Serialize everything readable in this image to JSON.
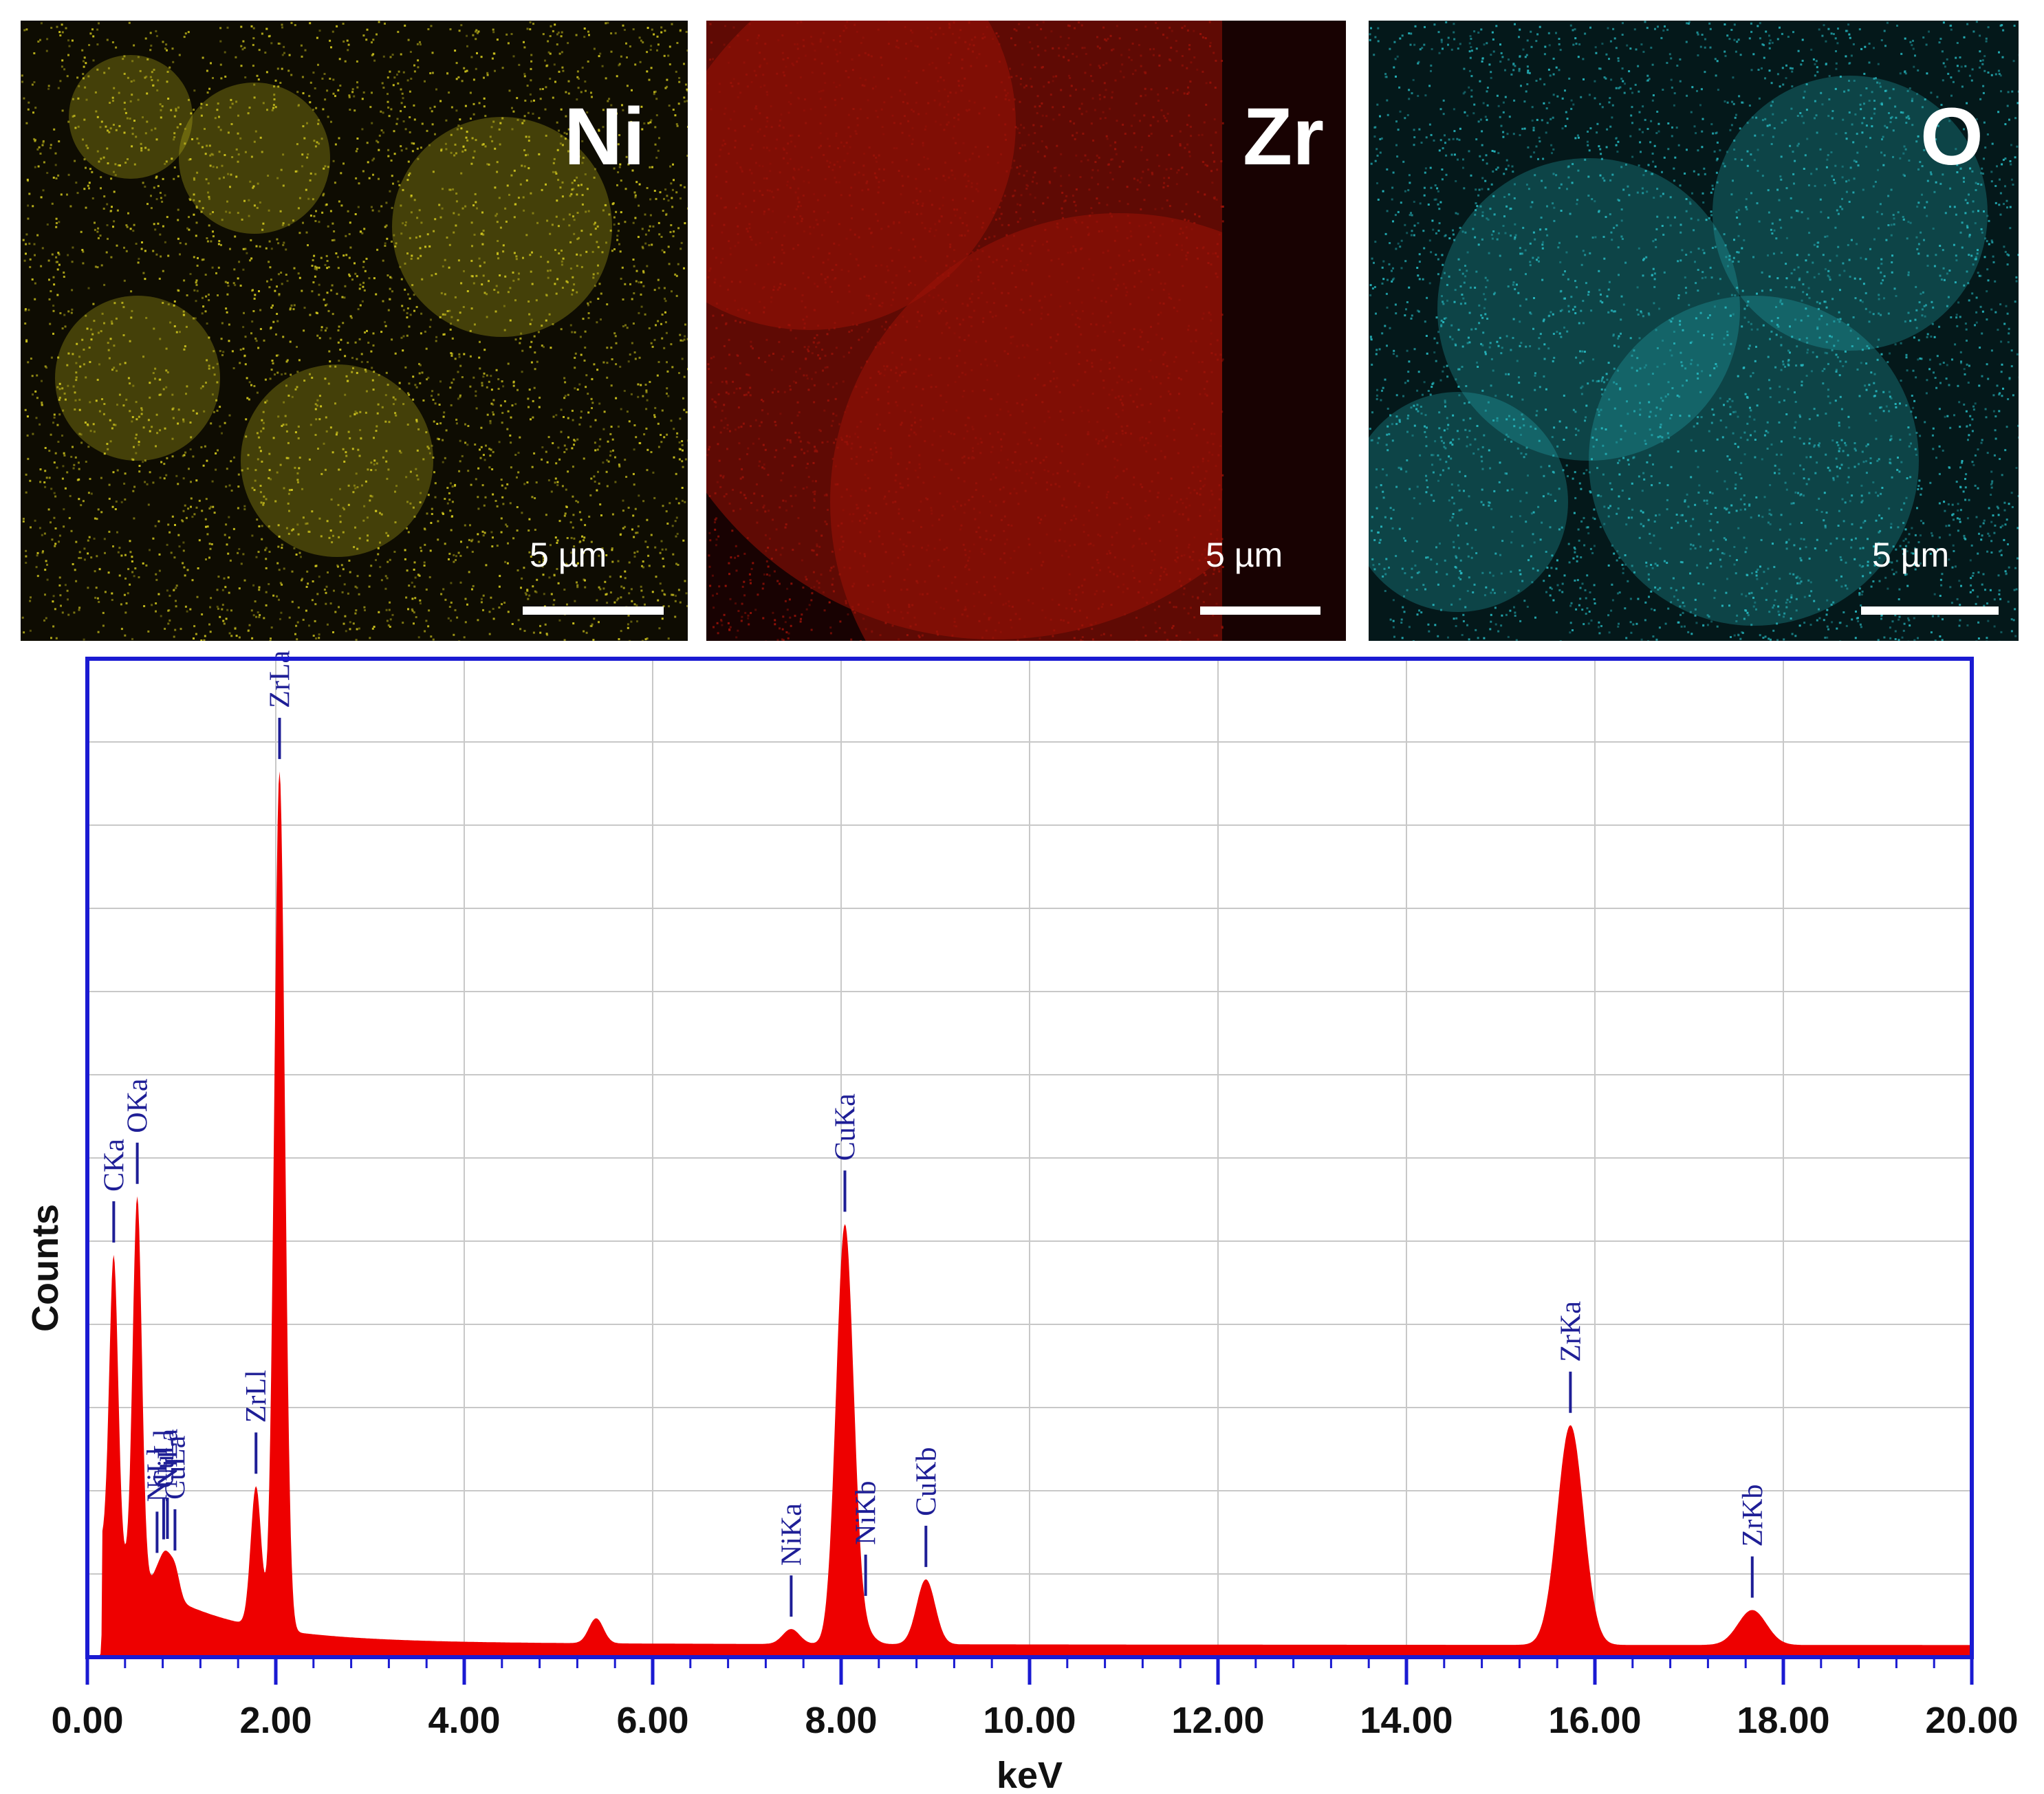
{
  "maps": [
    {
      "element": "Ni",
      "scale": "5 µm",
      "color": "#d2c81e",
      "background": "#0e0c02"
    },
    {
      "element": "Zr",
      "scale": "5 µm",
      "color": "#9a1208",
      "background": "#180202"
    },
    {
      "element": "O",
      "scale": "5 µm",
      "color": "#26b8c0",
      "background": "#04181a"
    }
  ],
  "chart_data": {
    "type": "area",
    "title": "",
    "xlabel": "keV",
    "ylabel": "Counts",
    "xlim": [
      0,
      20
    ],
    "ylim": [
      0,
      100
    ],
    "x_ticks": [
      "0.00",
      "2.00",
      "4.00",
      "6.00",
      "8.00",
      "10.00",
      "12.00",
      "14.00",
      "16.00",
      "18.00",
      "20.00"
    ],
    "grid": true,
    "fill_color": "#ee0000",
    "frame_color": "#1a1ad2",
    "peak_label_color": "#1e1e96",
    "peaks": [
      {
        "label": "CKa",
        "kev": 0.28,
        "height": 30
      },
      {
        "label": "OKa",
        "kev": 0.53,
        "height": 38
      },
      {
        "label": "CuLa",
        "kev": 0.93,
        "height": 3
      },
      {
        "label": "CuLl",
        "kev": 0.81,
        "height": 2
      },
      {
        "label": "NiLa",
        "kev": 0.85,
        "height": 2
      },
      {
        "label": "NiLl",
        "kev": 0.74,
        "height": 1.5
      },
      {
        "label": "ZrLl",
        "kev": 1.79,
        "height": 14
      },
      {
        "label": "ZrLa",
        "kev": 2.04,
        "height": 86
      },
      {
        "label": "NiKa",
        "kev": 7.47,
        "height": 1.5
      },
      {
        "label": "CuKa",
        "kev": 8.04,
        "height": 42
      },
      {
        "label": "NiKb",
        "kev": 8.26,
        "height": 1
      },
      {
        "label": "CuKb",
        "kev": 8.9,
        "height": 6.5
      },
      {
        "label": "ZrKa",
        "kev": 15.74,
        "height": 22
      },
      {
        "label": "ZrKb",
        "kev": 17.67,
        "height": 3.5
      }
    ],
    "extra_peaks": [
      {
        "kev": 5.4,
        "height": 2.5
      }
    ]
  }
}
